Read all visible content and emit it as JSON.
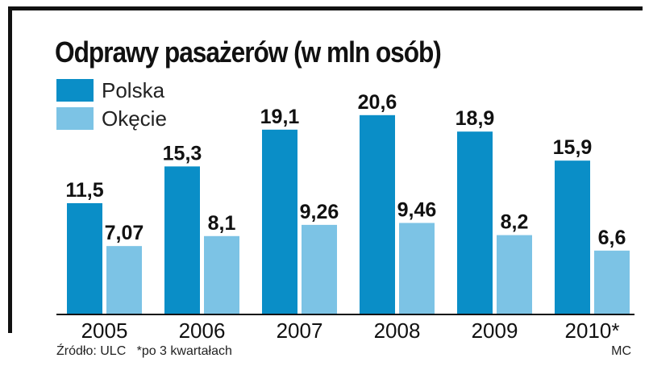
{
  "title": "Odprawy pasażerów (w mln osób)",
  "colors": {
    "polska": "#0a8ec7",
    "okecie": "#7cc3e5",
    "axis": "#111111"
  },
  "chart_data": {
    "type": "bar",
    "title": "Odprawy pasażerów (w mln osób)",
    "categories": [
      "2005",
      "2006",
      "2007",
      "2008",
      "2009",
      "2010*"
    ],
    "series": [
      {
        "name": "Polska",
        "values": [
          11.5,
          15.3,
          19.1,
          20.6,
          18.9,
          15.9
        ],
        "labels": [
          "11,5",
          "15,3",
          "19,1",
          "20,6",
          "18,9",
          "15,9"
        ]
      },
      {
        "name": "Okęcie",
        "values": [
          7.07,
          8.1,
          9.26,
          9.46,
          8.2,
          6.6
        ],
        "labels": [
          "7,07",
          "8,1",
          "9,26",
          "9,46",
          "8,2",
          "6,6"
        ]
      }
    ],
    "xlabel": "",
    "ylabel": "",
    "legend": "top-left",
    "grid": false
  },
  "footer": {
    "source": "Źródło: ULC   *po 3 kwartałach",
    "credit": "MC"
  }
}
